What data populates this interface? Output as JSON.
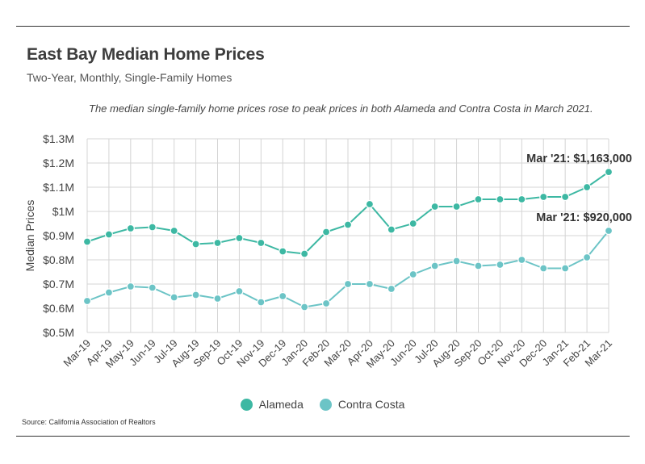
{
  "header": {
    "title": "East Bay Median Home Prices",
    "subtitle": "Two-Year, Monthly, Single-Family Homes",
    "note": "The median single-family home prices rose to peak prices in both Alameda and Contra Costa in March 2021."
  },
  "chart_data": {
    "type": "line",
    "ylabel": "Median Prices",
    "xlabel": "",
    "ylim": [
      500000,
      1300000
    ],
    "yticks": [
      500000,
      600000,
      700000,
      800000,
      900000,
      1000000,
      1100000,
      1200000,
      1300000
    ],
    "ytick_labels": [
      "$0.5M",
      "$0.6M",
      "$0.7M",
      "$0.8M",
      "$0.9M",
      "$1M",
      "$1.1M",
      "$1.2M",
      "$1.3M"
    ],
    "grid": true,
    "categories": [
      "Mar-19",
      "Apr-19",
      "May-19",
      "Jun-19",
      "Jul-19",
      "Aug-19",
      "Sep-19",
      "Oct-19",
      "Nov-19",
      "Dec-19",
      "Jan-20",
      "Feb-20",
      "Mar-20",
      "Apr-20",
      "May-20",
      "Jun-20",
      "Jul-20",
      "Aug-20",
      "Sep-20",
      "Oct-20",
      "Nov-20",
      "Dec-20",
      "Jan-21",
      "Feb-21",
      "Mar-21"
    ],
    "series": [
      {
        "name": "Alameda",
        "color": "#3db8a3",
        "values": [
          875000,
          905000,
          930000,
          935000,
          920000,
          865000,
          870000,
          890000,
          870000,
          835000,
          825000,
          915000,
          945000,
          1030000,
          925000,
          950000,
          1020000,
          1020000,
          1050000,
          1050000,
          1050000,
          1060000,
          1060000,
          1100000,
          1163000
        ]
      },
      {
        "name": "Contra Costa",
        "color": "#6cc4c6",
        "values": [
          630000,
          665000,
          690000,
          685000,
          645000,
          655000,
          640000,
          670000,
          625000,
          650000,
          605000,
          620000,
          700000,
          700000,
          680000,
          740000,
          775000,
          795000,
          775000,
          780000,
          800000,
          765000,
          765000,
          810000,
          920000
        ]
      }
    ],
    "annotations": [
      {
        "series": "Alameda",
        "category": "Mar-21",
        "text": "Mar '21: $1,163,000"
      },
      {
        "series": "Contra Costa",
        "category": "Mar-21",
        "text": "Mar '21: $920,000"
      }
    ]
  },
  "legend": {
    "items": [
      {
        "label": "Alameda",
        "color": "#3db8a3"
      },
      {
        "label": "Contra Costa",
        "color": "#6cc4c6"
      }
    ]
  },
  "source": "Source:  California Association of Realtors"
}
